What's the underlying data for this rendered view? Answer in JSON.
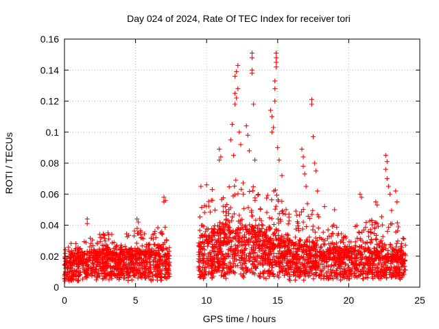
{
  "chart_data": {
    "type": "scatter",
    "title": "Day 024 of 2024, Rate Of TEC Index for receiver tori",
    "xlabel": "GPS time / hours",
    "ylabel": "ROTI / TECUs",
    "xlim": [
      0,
      25
    ],
    "ylim": [
      0,
      0.16
    ],
    "xticks": [
      0,
      5,
      10,
      15,
      20,
      25
    ],
    "yticks": [
      0,
      0.02,
      0.04,
      0.06,
      0.08,
      0.1,
      0.12,
      0.14,
      0.16
    ],
    "xtick_labels": [
      "0",
      "5",
      "10",
      "15",
      "20",
      "25"
    ],
    "ytick_labels": [
      "0",
      "0.02",
      "0.04",
      "0.06",
      "0.08",
      "0.1",
      "0.12",
      "0.14",
      "0.16"
    ],
    "grid": true,
    "marker": "+",
    "color": "#ff0000",
    "data_gap_hours": [
      7.4,
      9.4
    ],
    "envelope_note": "dense cloud of points; baseline ~0.005-0.03, upper envelope per hour below",
    "envelope": [
      {
        "x": 0.0,
        "low": 0.004,
        "mid": 0.015,
        "high": 0.03
      },
      {
        "x": 1.0,
        "low": 0.005,
        "mid": 0.015,
        "high": 0.028
      },
      {
        "x": 2.0,
        "low": 0.006,
        "mid": 0.017,
        "high": 0.034
      },
      {
        "x": 3.0,
        "low": 0.006,
        "mid": 0.018,
        "high": 0.036
      },
      {
        "x": 4.0,
        "low": 0.006,
        "mid": 0.017,
        "high": 0.032
      },
      {
        "x": 5.0,
        "low": 0.006,
        "mid": 0.018,
        "high": 0.04
      },
      {
        "x": 6.0,
        "low": 0.006,
        "mid": 0.018,
        "high": 0.034
      },
      {
        "x": 7.0,
        "low": 0.005,
        "mid": 0.019,
        "high": 0.042
      },
      {
        "x": 7.4,
        "low": 0.006,
        "mid": 0.016,
        "high": 0.028
      },
      {
        "x": 9.4,
        "low": 0.006,
        "mid": 0.022,
        "high": 0.05
      },
      {
        "x": 10.0,
        "low": 0.006,
        "mid": 0.025,
        "high": 0.058
      },
      {
        "x": 11.0,
        "low": 0.007,
        "mid": 0.027,
        "high": 0.062
      },
      {
        "x": 12.0,
        "low": 0.007,
        "mid": 0.03,
        "high": 0.075
      },
      {
        "x": 13.0,
        "low": 0.007,
        "mid": 0.028,
        "high": 0.07
      },
      {
        "x": 14.0,
        "low": 0.007,
        "mid": 0.026,
        "high": 0.06
      },
      {
        "x": 15.0,
        "low": 0.007,
        "mid": 0.026,
        "high": 0.065
      },
      {
        "x": 16.0,
        "low": 0.006,
        "mid": 0.021,
        "high": 0.05
      },
      {
        "x": 17.0,
        "low": 0.006,
        "mid": 0.021,
        "high": 0.055
      },
      {
        "x": 18.0,
        "low": 0.006,
        "mid": 0.02,
        "high": 0.045
      },
      {
        "x": 19.0,
        "low": 0.006,
        "mid": 0.018,
        "high": 0.04
      },
      {
        "x": 20.0,
        "low": 0.006,
        "mid": 0.018,
        "high": 0.038
      },
      {
        "x": 21.0,
        "low": 0.006,
        "mid": 0.018,
        "high": 0.042
      },
      {
        "x": 22.0,
        "low": 0.006,
        "mid": 0.018,
        "high": 0.045
      },
      {
        "x": 23.0,
        "low": 0.006,
        "mid": 0.018,
        "high": 0.05
      },
      {
        "x": 24.0,
        "low": 0.006,
        "mid": 0.016,
        "high": 0.03
      }
    ],
    "spikes": [
      {
        "x": 1.6,
        "y": 0.044
      },
      {
        "x": 1.6,
        "y": 0.041
      },
      {
        "x": 5.1,
        "y": 0.044
      },
      {
        "x": 5.2,
        "y": 0.042
      },
      {
        "x": 7.0,
        "y": 0.058
      },
      {
        "x": 7.1,
        "y": 0.056
      },
      {
        "x": 7.0,
        "y": 0.055
      },
      {
        "x": 9.6,
        "y": 0.065
      },
      {
        "x": 10.0,
        "y": 0.066
      },
      {
        "x": 10.4,
        "y": 0.063
      },
      {
        "x": 10.9,
        "y": 0.089
      },
      {
        "x": 11.0,
        "y": 0.084
      },
      {
        "x": 10.9,
        "y": 0.082
      },
      {
        "x": 11.7,
        "y": 0.095
      },
      {
        "x": 11.8,
        "y": 0.105
      },
      {
        "x": 11.9,
        "y": 0.085
      },
      {
        "x": 12.0,
        "y": 0.136
      },
      {
        "x": 12.0,
        "y": 0.125
      },
      {
        "x": 12.1,
        "y": 0.122
      },
      {
        "x": 12.0,
        "y": 0.118
      },
      {
        "x": 12.2,
        "y": 0.143
      },
      {
        "x": 12.1,
        "y": 0.139
      },
      {
        "x": 12.2,
        "y": 0.128
      },
      {
        "x": 12.3,
        "y": 0.1
      },
      {
        "x": 12.4,
        "y": 0.092
      },
      {
        "x": 12.8,
        "y": 0.104
      },
      {
        "x": 12.9,
        "y": 0.098
      },
      {
        "x": 13.0,
        "y": 0.088
      },
      {
        "x": 13.2,
        "y": 0.151
      },
      {
        "x": 13.2,
        "y": 0.148
      },
      {
        "x": 13.2,
        "y": 0.14
      },
      {
        "x": 13.2,
        "y": 0.138
      },
      {
        "x": 13.3,
        "y": 0.118
      },
      {
        "x": 13.4,
        "y": 0.082
      },
      {
        "x": 14.5,
        "y": 0.114
      },
      {
        "x": 14.6,
        "y": 0.11
      },
      {
        "x": 14.6,
        "y": 0.1
      },
      {
        "x": 14.7,
        "y": 0.103
      },
      {
        "x": 14.8,
        "y": 0.133
      },
      {
        "x": 14.8,
        "y": 0.128
      },
      {
        "x": 14.9,
        "y": 0.151
      },
      {
        "x": 14.9,
        "y": 0.148
      },
      {
        "x": 14.9,
        "y": 0.145
      },
      {
        "x": 14.9,
        "y": 0.142
      },
      {
        "x": 14.8,
        "y": 0.12
      },
      {
        "x": 15.0,
        "y": 0.09
      },
      {
        "x": 15.1,
        "y": 0.082
      },
      {
        "x": 15.3,
        "y": 0.072
      },
      {
        "x": 16.7,
        "y": 0.089
      },
      {
        "x": 16.8,
        "y": 0.084
      },
      {
        "x": 16.8,
        "y": 0.078
      },
      {
        "x": 16.9,
        "y": 0.073
      },
      {
        "x": 17.0,
        "y": 0.065
      },
      {
        "x": 17.4,
        "y": 0.121
      },
      {
        "x": 17.4,
        "y": 0.118
      },
      {
        "x": 17.5,
        "y": 0.097
      },
      {
        "x": 17.6,
        "y": 0.08
      },
      {
        "x": 17.7,
        "y": 0.075
      },
      {
        "x": 17.8,
        "y": 0.062
      },
      {
        "x": 18.3,
        "y": 0.052
      },
      {
        "x": 19.0,
        "y": 0.05
      },
      {
        "x": 20.8,
        "y": 0.06
      },
      {
        "x": 20.9,
        "y": 0.058
      },
      {
        "x": 21.9,
        "y": 0.055
      },
      {
        "x": 22.0,
        "y": 0.053
      },
      {
        "x": 22.6,
        "y": 0.085
      },
      {
        "x": 22.7,
        "y": 0.081
      },
      {
        "x": 22.6,
        "y": 0.076
      },
      {
        "x": 22.7,
        "y": 0.07
      },
      {
        "x": 22.8,
        "y": 0.065
      },
      {
        "x": 22.9,
        "y": 0.06
      },
      {
        "x": 23.3,
        "y": 0.062
      },
      {
        "x": 23.4,
        "y": 0.055
      }
    ]
  }
}
